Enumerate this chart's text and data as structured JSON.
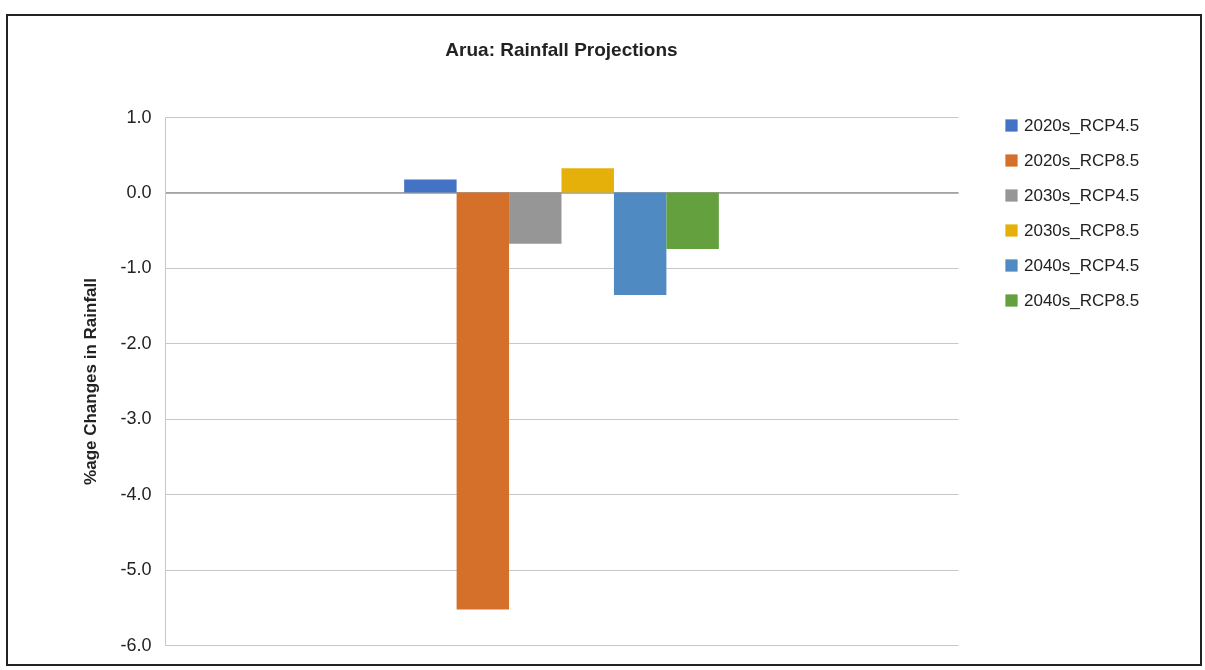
{
  "chart_data": {
    "type": "bar",
    "title": "Arua: Rainfall  Projections",
    "ylabel": "%age Changes in Rainfall",
    "categories": [
      null
    ],
    "series": [
      {
        "name": "2020s_RCP4.5",
        "color": "#4472c4",
        "values": [
          0.17
        ]
      },
      {
        "name": "2020s_RCP8.5",
        "color": "#d4702a",
        "values": [
          -5.53
        ]
      },
      {
        "name": "2030s_RCP4.5",
        "color": "#969696",
        "values": [
          -0.68
        ]
      },
      {
        "name": "2030s_RCP8.5",
        "color": "#e6b00a",
        "values": [
          0.32
        ]
      },
      {
        "name": "2040s_RCP4.5",
        "color": "#4f8ac2",
        "values": [
          -1.36
        ]
      },
      {
        "name": "2040s_RCP8.5",
        "color": "#64a03e",
        "values": [
          -0.75
        ]
      }
    ],
    "ylim": [
      -6,
      1
    ],
    "yticks": [
      {
        "value": -6,
        "label": "-6.0"
      },
      {
        "value": -5,
        "label": "-5.0"
      },
      {
        "value": -4,
        "label": "-4.0"
      },
      {
        "value": -3,
        "label": "-3.0"
      },
      {
        "value": -2,
        "label": "-2.0"
      },
      {
        "value": -1,
        "label": "-1.0"
      },
      {
        "value": 0,
        "label": "0.0"
      },
      {
        "value": 1,
        "label": "1.0"
      }
    ],
    "grid": "y",
    "legend": "right"
  }
}
